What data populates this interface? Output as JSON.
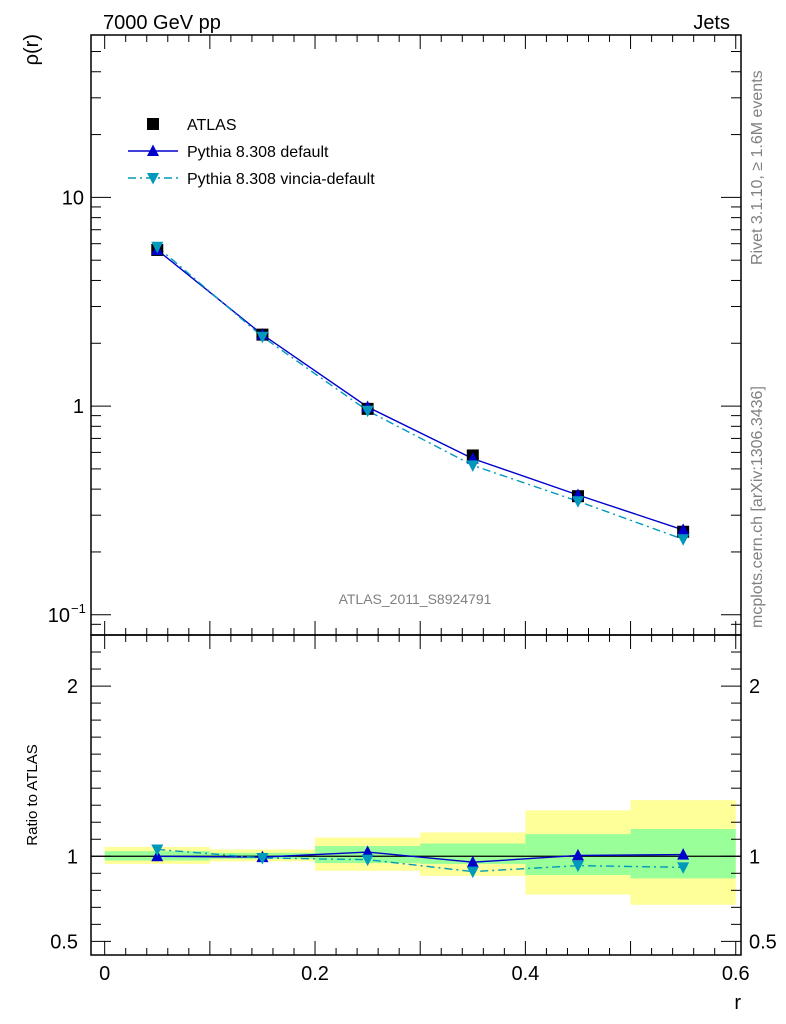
{
  "header": {
    "left": "7000 GeV pp",
    "right": "Jets"
  },
  "side_text": {
    "rivet": "Rivet 3.1.10, ≥ 1.6M events",
    "mcplots": "mcplots.cern.ch [arXiv:1306.3436]"
  },
  "watermark": "ATLAS_2011_S8924791",
  "chart_data": {
    "type": "line",
    "main": {
      "ylabel": "ρ(r)",
      "yscale": "log",
      "ylim": [
        0.08,
        60
      ],
      "yticks": [
        {
          "value": 10,
          "label": "10"
        },
        {
          "value": 1,
          "label": "1"
        },
        {
          "value": 0.1,
          "label": "10",
          "sup": "−1"
        }
      ]
    },
    "ratio": {
      "ylabel": "Ratio to ATLAS",
      "ylim": [
        0.42,
        2.3
      ],
      "yticks": [
        {
          "value": 2,
          "label": "2"
        },
        {
          "value": 1,
          "label": "1"
        },
        {
          "value": 0.5,
          "label": "0.5"
        }
      ],
      "bands": [
        {
          "x0": 0.0,
          "x1": 0.1,
          "green": [
            0.975,
            1.03
          ],
          "yellow": [
            0.955,
            1.055
          ]
        },
        {
          "x0": 0.1,
          "x1": 0.2,
          "green": [
            0.985,
            1.02
          ],
          "yellow": [
            0.97,
            1.04
          ]
        },
        {
          "x0": 0.2,
          "x1": 0.3,
          "green": [
            0.96,
            1.06
          ],
          "yellow": [
            0.915,
            1.11
          ]
        },
        {
          "x0": 0.3,
          "x1": 0.4,
          "green": [
            0.955,
            1.075
          ],
          "yellow": [
            0.885,
            1.14
          ]
        },
        {
          "x0": 0.4,
          "x1": 0.5,
          "green": [
            0.89,
            1.13
          ],
          "yellow": [
            0.775,
            1.27
          ]
        },
        {
          "x0": 0.5,
          "x1": 0.6,
          "green": [
            0.87,
            1.16
          ],
          "yellow": [
            0.715,
            1.33
          ]
        }
      ]
    },
    "xlabel": "r",
    "xlim": [
      -0.013,
      0.605
    ],
    "xticks": [
      {
        "value": 0,
        "label": "0"
      },
      {
        "value": 0.2,
        "label": "0.2"
      },
      {
        "value": 0.4,
        "label": "0.4"
      },
      {
        "value": 0.6,
        "label": "0.6"
      }
    ],
    "x": [
      0.05,
      0.15,
      0.25,
      0.35,
      0.45,
      0.55
    ],
    "series": [
      {
        "name": "ATLAS",
        "color": "#000000",
        "marker": "square",
        "line": "none",
        "values": [
          5.6,
          2.2,
          0.97,
          0.58,
          0.37,
          0.25
        ],
        "ratio": [
          1,
          1,
          1,
          1,
          1,
          1
        ]
      },
      {
        "name": "Pythia 8.308 default",
        "color": "#0000cc",
        "marker": "triangle-up",
        "line": "solid",
        "values": [
          5.6,
          2.2,
          0.99,
          0.56,
          0.375,
          0.255
        ],
        "ratio": [
          1.0,
          0.995,
          1.025,
          0.965,
          1.005,
          1.01
        ]
      },
      {
        "name": "Pythia 8.308 vincia-default",
        "color": "#0099bb",
        "marker": "triangle-down",
        "line": "dashdot",
        "values": [
          5.8,
          2.15,
          0.95,
          0.52,
          0.35,
          0.23
        ],
        "ratio": [
          1.04,
          0.99,
          0.98,
          0.91,
          0.945,
          0.935
        ]
      }
    ]
  }
}
